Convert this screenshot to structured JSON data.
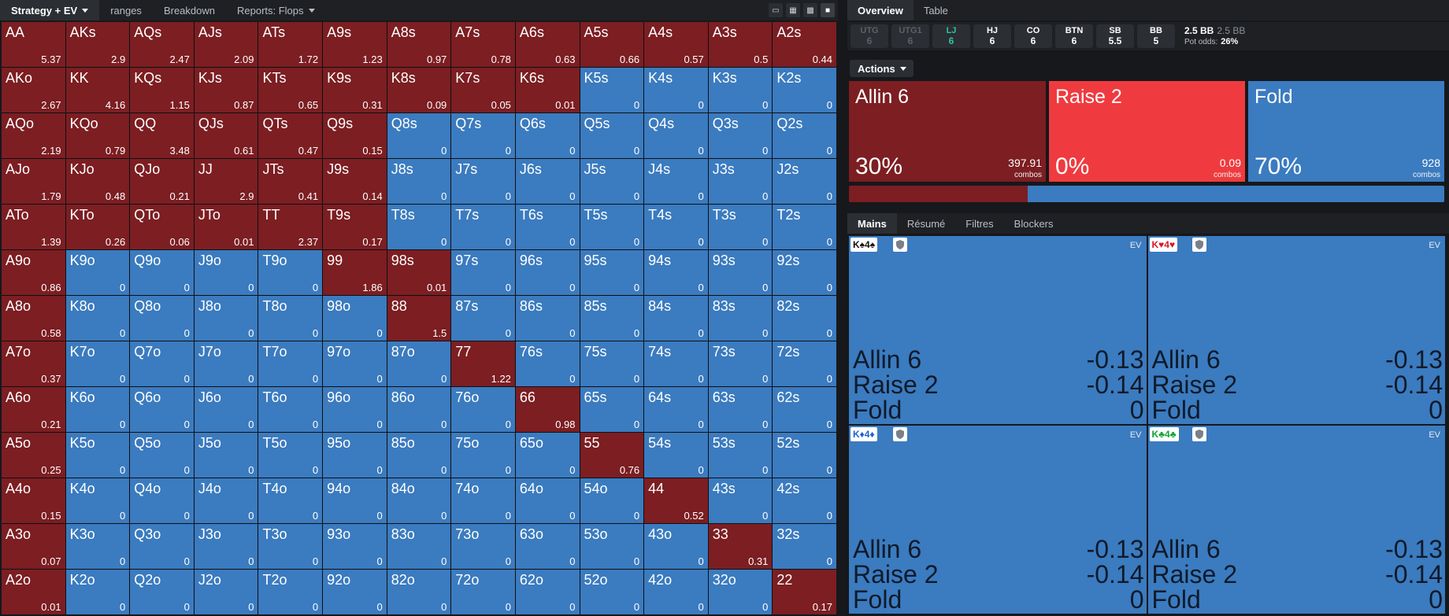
{
  "left_toolbar": {
    "tabs": [
      {
        "label": "Strategy + EV",
        "dropdown": true
      },
      {
        "label": "ranges",
        "dropdown": false
      },
      {
        "label": "Breakdown",
        "dropdown": false
      },
      {
        "label": "Reports: Flops",
        "dropdown": true
      }
    ],
    "view_icons": [
      "layout-split-icon",
      "grid-small-icon",
      "grid-large-icon",
      "square-icon"
    ]
  },
  "grid": [
    [
      [
        "AA",
        "5.37",
        "r"
      ],
      [
        "AKs",
        "2.9",
        "r"
      ],
      [
        "AQs",
        "2.47",
        "r"
      ],
      [
        "AJs",
        "2.09",
        "r"
      ],
      [
        "ATs",
        "1.72",
        "r"
      ],
      [
        "A9s",
        "1.23",
        "r"
      ],
      [
        "A8s",
        "0.97",
        "r"
      ],
      [
        "A7s",
        "0.78",
        "r"
      ],
      [
        "A6s",
        "0.63",
        "r"
      ],
      [
        "A5s",
        "0.66",
        "r"
      ],
      [
        "A4s",
        "0.57",
        "r"
      ],
      [
        "A3s",
        "0.5",
        "r"
      ],
      [
        "A2s",
        "0.44",
        "r"
      ]
    ],
    [
      [
        "AKo",
        "2.67",
        "r"
      ],
      [
        "KK",
        "4.16",
        "r"
      ],
      [
        "KQs",
        "1.15",
        "r"
      ],
      [
        "KJs",
        "0.87",
        "r"
      ],
      [
        "KTs",
        "0.65",
        "r"
      ],
      [
        "K9s",
        "0.31",
        "r"
      ],
      [
        "K8s",
        "0.09",
        "r"
      ],
      [
        "K7s",
        "0.05",
        "r"
      ],
      [
        "K6s",
        "0.01",
        "r"
      ],
      [
        "K5s",
        "0",
        "b"
      ],
      [
        "K4s",
        "0",
        "b"
      ],
      [
        "K3s",
        "0",
        "b"
      ],
      [
        "K2s",
        "0",
        "b"
      ]
    ],
    [
      [
        "AQo",
        "2.19",
        "r"
      ],
      [
        "KQo",
        "0.79",
        "r"
      ],
      [
        "QQ",
        "3.48",
        "r"
      ],
      [
        "QJs",
        "0.61",
        "r"
      ],
      [
        "QTs",
        "0.47",
        "r"
      ],
      [
        "Q9s",
        "0.15",
        "r"
      ],
      [
        "Q8s",
        "0",
        "b"
      ],
      [
        "Q7s",
        "0",
        "b"
      ],
      [
        "Q6s",
        "0",
        "b"
      ],
      [
        "Q5s",
        "0",
        "b"
      ],
      [
        "Q4s",
        "0",
        "b"
      ],
      [
        "Q3s",
        "0",
        "b"
      ],
      [
        "Q2s",
        "0",
        "b"
      ]
    ],
    [
      [
        "AJo",
        "1.79",
        "r"
      ],
      [
        "KJo",
        "0.48",
        "r"
      ],
      [
        "QJo",
        "0.21",
        "r"
      ],
      [
        "JJ",
        "2.9",
        "r"
      ],
      [
        "JTs",
        "0.41",
        "r"
      ],
      [
        "J9s",
        "0.14",
        "r"
      ],
      [
        "J8s",
        "0",
        "b"
      ],
      [
        "J7s",
        "0",
        "b"
      ],
      [
        "J6s",
        "0",
        "b"
      ],
      [
        "J5s",
        "0",
        "b"
      ],
      [
        "J4s",
        "0",
        "b"
      ],
      [
        "J3s",
        "0",
        "b"
      ],
      [
        "J2s",
        "0",
        "b"
      ]
    ],
    [
      [
        "ATo",
        "1.39",
        "r"
      ],
      [
        "KTo",
        "0.26",
        "r"
      ],
      [
        "QTo",
        "0.06",
        "r"
      ],
      [
        "JTo",
        "0.01",
        "r"
      ],
      [
        "TT",
        "2.37",
        "r"
      ],
      [
        "T9s",
        "0.17",
        "r"
      ],
      [
        "T8s",
        "0",
        "b"
      ],
      [
        "T7s",
        "0",
        "b"
      ],
      [
        "T6s",
        "0",
        "b"
      ],
      [
        "T5s",
        "0",
        "b"
      ],
      [
        "T4s",
        "0",
        "b"
      ],
      [
        "T3s",
        "0",
        "b"
      ],
      [
        "T2s",
        "0",
        "b"
      ]
    ],
    [
      [
        "A9o",
        "0.86",
        "r"
      ],
      [
        "K9o",
        "0",
        "b"
      ],
      [
        "Q9o",
        "0",
        "b"
      ],
      [
        "J9o",
        "0",
        "b"
      ],
      [
        "T9o",
        "0",
        "b"
      ],
      [
        "99",
        "1.86",
        "r"
      ],
      [
        "98s",
        "0.01",
        "r"
      ],
      [
        "97s",
        "0",
        "b"
      ],
      [
        "96s",
        "0",
        "b"
      ],
      [
        "95s",
        "0",
        "b"
      ],
      [
        "94s",
        "0",
        "b"
      ],
      [
        "93s",
        "0",
        "b"
      ],
      [
        "92s",
        "0",
        "b"
      ]
    ],
    [
      [
        "A8o",
        "0.58",
        "r"
      ],
      [
        "K8o",
        "0",
        "b"
      ],
      [
        "Q8o",
        "0",
        "b"
      ],
      [
        "J8o",
        "0",
        "b"
      ],
      [
        "T8o",
        "0",
        "b"
      ],
      [
        "98o",
        "0",
        "b"
      ],
      [
        "88",
        "1.5",
        "r"
      ],
      [
        "87s",
        "0",
        "b"
      ],
      [
        "86s",
        "0",
        "b"
      ],
      [
        "85s",
        "0",
        "b"
      ],
      [
        "84s",
        "0",
        "b"
      ],
      [
        "83s",
        "0",
        "b"
      ],
      [
        "82s",
        "0",
        "b"
      ]
    ],
    [
      [
        "A7o",
        "0.37",
        "r"
      ],
      [
        "K7o",
        "0",
        "b"
      ],
      [
        "Q7o",
        "0",
        "b"
      ],
      [
        "J7o",
        "0",
        "b"
      ],
      [
        "T7o",
        "0",
        "b"
      ],
      [
        "97o",
        "0",
        "b"
      ],
      [
        "87o",
        "0",
        "b"
      ],
      [
        "77",
        "1.22",
        "r"
      ],
      [
        "76s",
        "0",
        "b"
      ],
      [
        "75s",
        "0",
        "b"
      ],
      [
        "74s",
        "0",
        "b"
      ],
      [
        "73s",
        "0",
        "b"
      ],
      [
        "72s",
        "0",
        "b"
      ]
    ],
    [
      [
        "A6o",
        "0.21",
        "r"
      ],
      [
        "K6o",
        "0",
        "b"
      ],
      [
        "Q6o",
        "0",
        "b"
      ],
      [
        "J6o",
        "0",
        "b"
      ],
      [
        "T6o",
        "0",
        "b"
      ],
      [
        "96o",
        "0",
        "b"
      ],
      [
        "86o",
        "0",
        "b"
      ],
      [
        "76o",
        "0",
        "b"
      ],
      [
        "66",
        "0.98",
        "r"
      ],
      [
        "65s",
        "0",
        "b"
      ],
      [
        "64s",
        "0",
        "b"
      ],
      [
        "63s",
        "0",
        "b"
      ],
      [
        "62s",
        "0",
        "b"
      ]
    ],
    [
      [
        "A5o",
        "0.25",
        "r"
      ],
      [
        "K5o",
        "0",
        "b"
      ],
      [
        "Q5o",
        "0",
        "b"
      ],
      [
        "J5o",
        "0",
        "b"
      ],
      [
        "T5o",
        "0",
        "b"
      ],
      [
        "95o",
        "0",
        "b"
      ],
      [
        "85o",
        "0",
        "b"
      ],
      [
        "75o",
        "0",
        "b"
      ],
      [
        "65o",
        "0",
        "b"
      ],
      [
        "55",
        "0.76",
        "r"
      ],
      [
        "54s",
        "0",
        "b"
      ],
      [
        "53s",
        "0",
        "b"
      ],
      [
        "52s",
        "0",
        "b"
      ]
    ],
    [
      [
        "A4o",
        "0.15",
        "r"
      ],
      [
        "K4o",
        "0",
        "b"
      ],
      [
        "Q4o",
        "0",
        "b"
      ],
      [
        "J4o",
        "0",
        "b"
      ],
      [
        "T4o",
        "0",
        "b"
      ],
      [
        "94o",
        "0",
        "b"
      ],
      [
        "84o",
        "0",
        "b"
      ],
      [
        "74o",
        "0",
        "b"
      ],
      [
        "64o",
        "0",
        "b"
      ],
      [
        "54o",
        "0",
        "b"
      ],
      [
        "44",
        "0.52",
        "r"
      ],
      [
        "43s",
        "0",
        "b"
      ],
      [
        "42s",
        "0",
        "b"
      ]
    ],
    [
      [
        "A3o",
        "0.07",
        "r"
      ],
      [
        "K3o",
        "0",
        "b"
      ],
      [
        "Q3o",
        "0",
        "b"
      ],
      [
        "J3o",
        "0",
        "b"
      ],
      [
        "T3o",
        "0",
        "b"
      ],
      [
        "93o",
        "0",
        "b"
      ],
      [
        "83o",
        "0",
        "b"
      ],
      [
        "73o",
        "0",
        "b"
      ],
      [
        "63o",
        "0",
        "b"
      ],
      [
        "53o",
        "0",
        "b"
      ],
      [
        "43o",
        "0",
        "b"
      ],
      [
        "33",
        "0.31",
        "r"
      ],
      [
        "32s",
        "0",
        "b"
      ]
    ],
    [
      [
        "A2o",
        "0.01",
        "r"
      ],
      [
        "K2o",
        "0",
        "b"
      ],
      [
        "Q2o",
        "0",
        "b"
      ],
      [
        "J2o",
        "0",
        "b"
      ],
      [
        "T2o",
        "0",
        "b"
      ],
      [
        "92o",
        "0",
        "b"
      ],
      [
        "82o",
        "0",
        "b"
      ],
      [
        "72o",
        "0",
        "b"
      ],
      [
        "62o",
        "0",
        "b"
      ],
      [
        "52o",
        "0",
        "b"
      ],
      [
        "42o",
        "0",
        "b"
      ],
      [
        "32o",
        "0",
        "b"
      ],
      [
        "22",
        "0.17",
        "r"
      ]
    ]
  ],
  "right_tabs": [
    {
      "label": "Overview"
    },
    {
      "label": "Table"
    }
  ],
  "positions": [
    {
      "name": "UTG",
      "stack": "6",
      "state": "dim"
    },
    {
      "name": "UTG1",
      "stack": "6",
      "state": "dim"
    },
    {
      "name": "LJ",
      "stack": "6",
      "state": "cur"
    },
    {
      "name": "HJ",
      "stack": "6",
      "state": "normal"
    },
    {
      "name": "CO",
      "stack": "6",
      "state": "normal"
    },
    {
      "name": "BTN",
      "stack": "6",
      "state": "normal"
    },
    {
      "name": "SB",
      "stack": "5.5",
      "state": "normal"
    },
    {
      "name": "BB",
      "stack": "5",
      "state": "normal"
    }
  ],
  "pot": {
    "amount": "2.5 BB",
    "amount_secondary": "2.5 BB",
    "odds_label": "Pot odds:",
    "odds_value": "26%"
  },
  "actions_button": "Actions",
  "actions": [
    {
      "name": "Allin 6",
      "percent": "30%",
      "combos": "397.91",
      "combos_label": "combos",
      "frequency": 0.3,
      "color": "#7c1e22"
    },
    {
      "name": "Raise 2",
      "percent": "0%",
      "combos": "0.09",
      "combos_label": "combos",
      "frequency": 0.0,
      "color": "#ef3b3f"
    },
    {
      "name": "Fold",
      "percent": "70%",
      "combos": "928",
      "combos_label": "combos",
      "frequency": 0.7,
      "color": "#3b7bbf"
    }
  ],
  "sub_tabs": [
    {
      "label": "Mains"
    },
    {
      "label": "Résumé"
    },
    {
      "label": "Filtres"
    },
    {
      "label": "Blockers"
    }
  ],
  "combos": [
    {
      "card": "K♠4♠",
      "suit_color": "black",
      "ev_label": "EV",
      "rows": [
        {
          "action": "Allin 6",
          "value": "-0.13"
        },
        {
          "action": "Raise 2",
          "value": "-0.14"
        },
        {
          "action": "Fold",
          "value": "0"
        }
      ]
    },
    {
      "card": "K♥4♥",
      "suit_color": "red",
      "ev_label": "EV",
      "rows": [
        {
          "action": "Allin 6",
          "value": "-0.13"
        },
        {
          "action": "Raise 2",
          "value": "-0.14"
        },
        {
          "action": "Fold",
          "value": "0"
        }
      ]
    },
    {
      "card": "K♦4♦",
      "suit_color": "blue",
      "ev_label": "EV",
      "rows": [
        {
          "action": "Allin 6",
          "value": "-0.13"
        },
        {
          "action": "Raise 2",
          "value": "-0.14"
        },
        {
          "action": "Fold",
          "value": "0"
        }
      ]
    },
    {
      "card": "K♣4♣",
      "suit_color": "green",
      "ev_label": "EV",
      "rows": [
        {
          "action": "Allin 6",
          "value": "-0.13"
        },
        {
          "action": "Raise 2",
          "value": "-0.14"
        },
        {
          "action": "Fold",
          "value": "0"
        }
      ]
    }
  ]
}
